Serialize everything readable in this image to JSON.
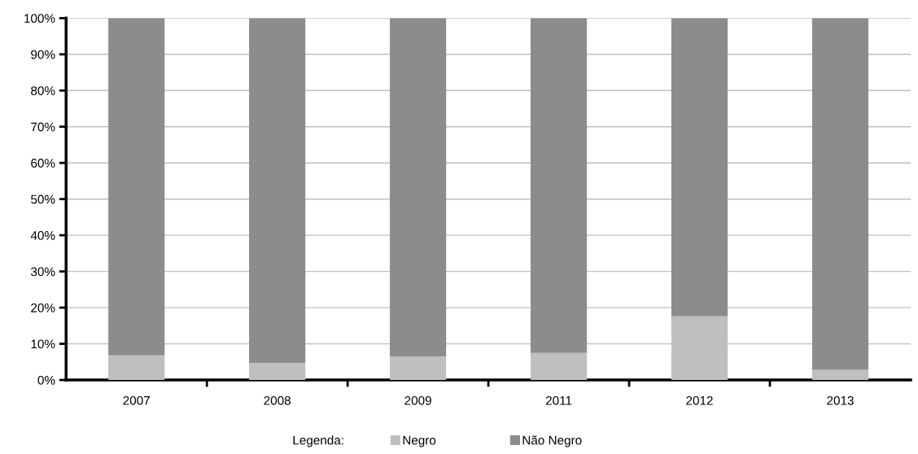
{
  "chart_data": {
    "type": "bar",
    "stacked": true,
    "categories": [
      "2007",
      "2008",
      "2009",
      "2011",
      "2012",
      "2013"
    ],
    "series": [
      {
        "name": "Negro",
        "color": "#bfbfbf",
        "values": [
          6.8,
          4.7,
          6.5,
          7.5,
          17.6,
          2.8
        ]
      },
      {
        "name": "Não Negro",
        "color": "#8c8c8c",
        "values": [
          93.2,
          95.3,
          93.5,
          92.5,
          82.4,
          97.2
        ]
      }
    ],
    "ylim": [
      0,
      100
    ],
    "yticks": [
      {
        "value": 0,
        "label": "0%"
      },
      {
        "value": 10,
        "label": "10%"
      },
      {
        "value": 20,
        "label": "20%"
      },
      {
        "value": 30,
        "label": "30%"
      },
      {
        "value": 40,
        "label": "40%"
      },
      {
        "value": 50,
        "label": "50%"
      },
      {
        "value": 60,
        "label": "60%"
      },
      {
        "value": 70,
        "label": "70%"
      },
      {
        "value": 80,
        "label": "80%"
      },
      {
        "value": 90,
        "label": "90%"
      },
      {
        "value": 100,
        "label": "100%"
      }
    ],
    "grid": "y",
    "legend": "bottom",
    "legend_title": "Legenda:"
  }
}
